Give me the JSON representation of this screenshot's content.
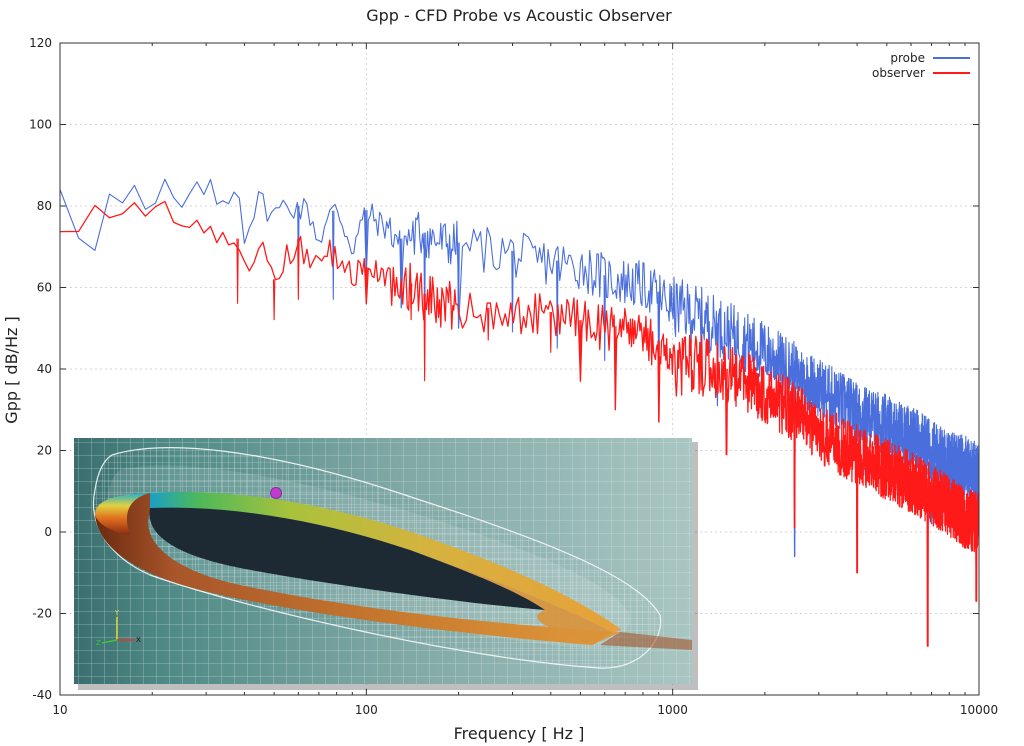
{
  "chart_data": {
    "type": "line",
    "title": "Gpp - CFD Probe vs Acoustic Observer",
    "xlabel": "Frequency [ Hz ]",
    "ylabel": "Gpp [ dB/Hz ]",
    "x_scale": "log",
    "xlim": [
      10,
      10000
    ],
    "ylim": [
      -40,
      120
    ],
    "x_ticks": [
      10,
      100,
      1000,
      10000
    ],
    "x_tick_labels": [
      "10",
      "100",
      "1000",
      "10000"
    ],
    "y_ticks": [
      -40,
      -20,
      0,
      20,
      40,
      60,
      80,
      100,
      120
    ],
    "y_tick_labels": [
      "-40",
      "-20",
      "0",
      "20",
      "40",
      "60",
      "80",
      "100",
      "120"
    ],
    "grid": true,
    "legend_position": "top-right",
    "series": [
      {
        "name": "probe",
        "color": "#4a6fdc",
        "x": [
          10,
          11,
          13,
          15,
          16,
          17,
          19,
          20,
          22,
          24,
          26,
          28,
          30,
          33,
          36,
          38,
          40,
          45,
          50,
          55,
          60,
          65,
          70,
          75,
          80,
          90,
          100,
          110,
          120,
          130,
          140,
          150,
          170,
          200,
          250,
          300,
          350,
          400,
          450,
          500,
          600,
          700,
          800,
          900,
          1000,
          1200,
          1500,
          2000,
          2500,
          3000,
          3500,
          4000,
          5000,
          6000,
          7000,
          8000,
          9000,
          10000
        ],
        "y": [
          86,
          76,
          72,
          85,
          81,
          85,
          79,
          76,
          86,
          79,
          81,
          83,
          86,
          80,
          84,
          86,
          74,
          82,
          78,
          81,
          80,
          79,
          72,
          77,
          80,
          70,
          79,
          76,
          75,
          72,
          73,
          74,
          72,
          71,
          70,
          69,
          67,
          67,
          66,
          66,
          63,
          62,
          61,
          59,
          56,
          54,
          50,
          45,
          40,
          36,
          33,
          30,
          27,
          24,
          21,
          18,
          17,
          15
        ],
        "dips": [
          [
            60,
            60
          ],
          [
            78,
            57
          ],
          [
            100,
            63
          ],
          [
            130,
            55
          ],
          [
            155,
            48
          ],
          [
            200,
            50
          ],
          [
            300,
            49
          ],
          [
            420,
            45
          ],
          [
            600,
            42
          ],
          [
            900,
            39
          ],
          [
            1400,
            31
          ],
          [
            2500,
            -6
          ],
          [
            4200,
            14
          ],
          [
            7000,
            2
          ],
          [
            9800,
            4
          ]
        ]
      },
      {
        "name": "observer",
        "color": "#ff1a1a",
        "x": [
          10,
          11,
          13,
          15,
          16,
          17,
          19,
          20,
          22,
          24,
          26,
          28,
          30,
          33,
          36,
          38,
          40,
          45,
          50,
          55,
          60,
          65,
          70,
          75,
          80,
          90,
          100,
          110,
          120,
          130,
          140,
          150,
          170,
          200,
          250,
          300,
          350,
          400,
          450,
          500,
          600,
          700,
          800,
          900,
          1000,
          1200,
          1500,
          2000,
          2500,
          3000,
          3500,
          4000,
          5000,
          6000,
          7000,
          8000,
          9000,
          10000
        ],
        "y": [
          77,
          76,
          77,
          79,
          79,
          79,
          78,
          78,
          79,
          74,
          73,
          77,
          74,
          74,
          68,
          72,
          66,
          70,
          62,
          68,
          72,
          65,
          66,
          70,
          68,
          64,
          65,
          63,
          62,
          59,
          61,
          59,
          57,
          56,
          55,
          54,
          53,
          54,
          53,
          52,
          51,
          50,
          48,
          47,
          41,
          42,
          40,
          35,
          30,
          25,
          22,
          20,
          16,
          13,
          10,
          7,
          4,
          3
        ],
        "dips": [
          [
            38,
            56
          ],
          [
            50,
            52
          ],
          [
            60,
            57
          ],
          [
            100,
            56
          ],
          [
            140,
            52
          ],
          [
            155,
            37
          ],
          [
            250,
            47
          ],
          [
            400,
            44
          ],
          [
            500,
            37
          ],
          [
            650,
            30
          ],
          [
            900,
            27
          ],
          [
            1500,
            19
          ],
          [
            2500,
            1
          ],
          [
            4000,
            -10
          ],
          [
            6800,
            -28
          ],
          [
            9800,
            -17
          ]
        ]
      }
    ]
  },
  "inset": {
    "description_hidden": false,
    "mesh_color": "#dfe8ea",
    "background_color": "#2f6f79",
    "airfoil_top_color": "#1e2a33",
    "airfoil_side_color": "#c8862e",
    "probe_marker_color": "#c13bcf"
  }
}
